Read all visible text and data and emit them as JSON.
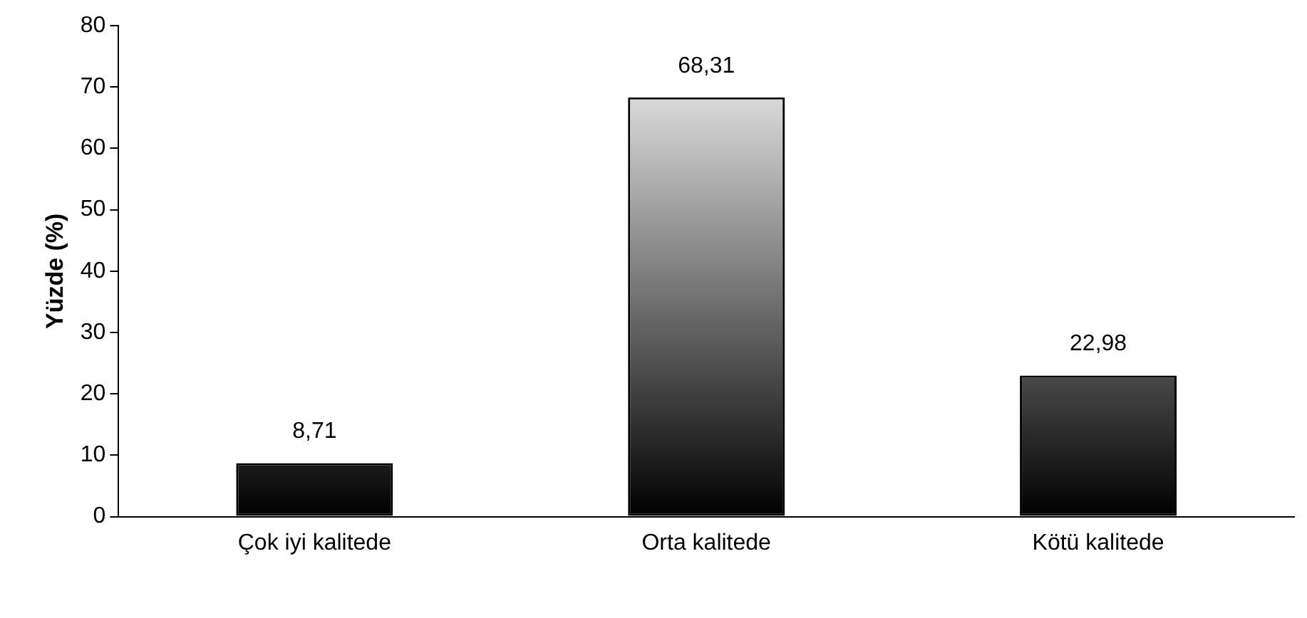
{
  "chart_data": {
    "type": "bar",
    "ylabel": "Yüzde (%)",
    "categories": [
      "Çok iyi kalitede",
      "Orta kalitede",
      "Kötü kalitede"
    ],
    "values": [
      8.71,
      68.31,
      22.98
    ],
    "value_labels": [
      "8,71",
      "68,31",
      "22,98"
    ],
    "color": "#000000",
    "ylim": [
      0,
      80
    ],
    "yticks": [
      0,
      10,
      20,
      30,
      40,
      50,
      60,
      70,
      80
    ],
    "grid": false,
    "legend": false
  }
}
